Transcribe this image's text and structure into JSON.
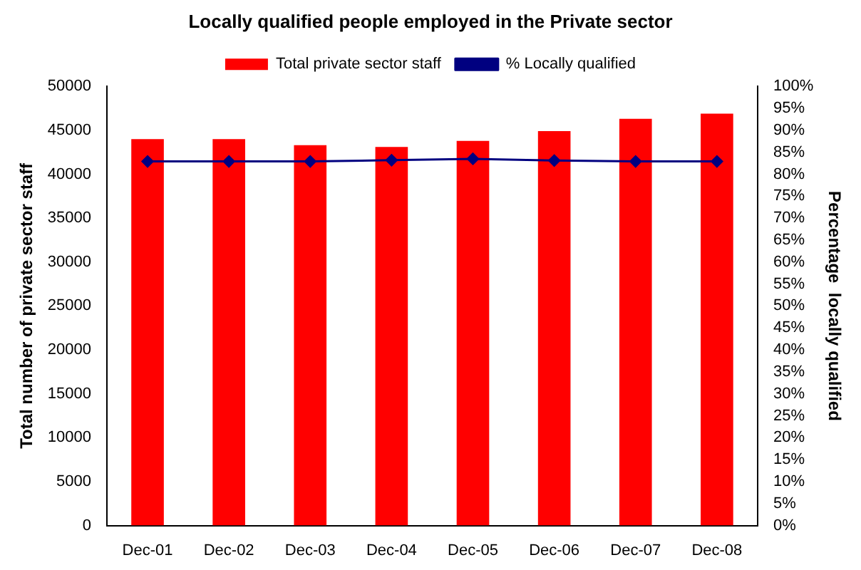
{
  "chart_data": {
    "type": "bar",
    "title": "Locally qualified people employed in the Private sector",
    "ylabel": "Total number of private sector staff",
    "y2label": "Percentage  locally qualified",
    "categories": [
      "Dec-01",
      "Dec-02",
      "Dec-03",
      "Dec-04",
      "Dec-05",
      "Dec-06",
      "Dec-07",
      "Dec-08"
    ],
    "series": [
      {
        "name": "Total private sector staff",
        "color": "#ff0000",
        "values": [
          44000,
          44000,
          43300,
          43100,
          43800,
          44900,
          46300,
          46900
        ]
      },
      {
        "name": "% Locally qualified",
        "type": "line",
        "axis": "y2",
        "color": "#000080",
        "marker": "diamond",
        "values": [
          82.9,
          82.9,
          82.9,
          83.2,
          83.5,
          83.1,
          82.9,
          82.9
        ]
      }
    ],
    "ylim": [
      0,
      50000
    ],
    "yticks": [
      0,
      5000,
      10000,
      15000,
      20000,
      25000,
      30000,
      35000,
      40000,
      45000,
      50000
    ],
    "y2lim": [
      0,
      100
    ],
    "y2ticks": [
      {
        "value": 0,
        "label": "0%"
      },
      {
        "value": 5,
        "label": "5%"
      },
      {
        "value": 10,
        "label": "10%"
      },
      {
        "value": 15,
        "label": "15%"
      },
      {
        "value": 20,
        "label": "20%"
      },
      {
        "value": 25,
        "label": "25%"
      },
      {
        "value": 30,
        "label": "30%"
      },
      {
        "value": 35,
        "label": "35%"
      },
      {
        "value": 40,
        "label": "40%"
      },
      {
        "value": 45,
        "label": "45%"
      },
      {
        "value": 50,
        "label": "50%"
      },
      {
        "value": 55,
        "label": "55%"
      },
      {
        "value": 60,
        "label": "60%"
      },
      {
        "value": 65,
        "label": "65%"
      },
      {
        "value": 70,
        "label": "70%"
      },
      {
        "value": 75,
        "label": "75%"
      },
      {
        "value": 80,
        "label": "80%"
      },
      {
        "value": 85,
        "label": "85%"
      },
      {
        "value": 90,
        "label": "90%"
      },
      {
        "value": 95,
        "label": "95%"
      },
      {
        "value": 100,
        "label": "100%"
      }
    ],
    "grid": false,
    "legend": "top right"
  }
}
